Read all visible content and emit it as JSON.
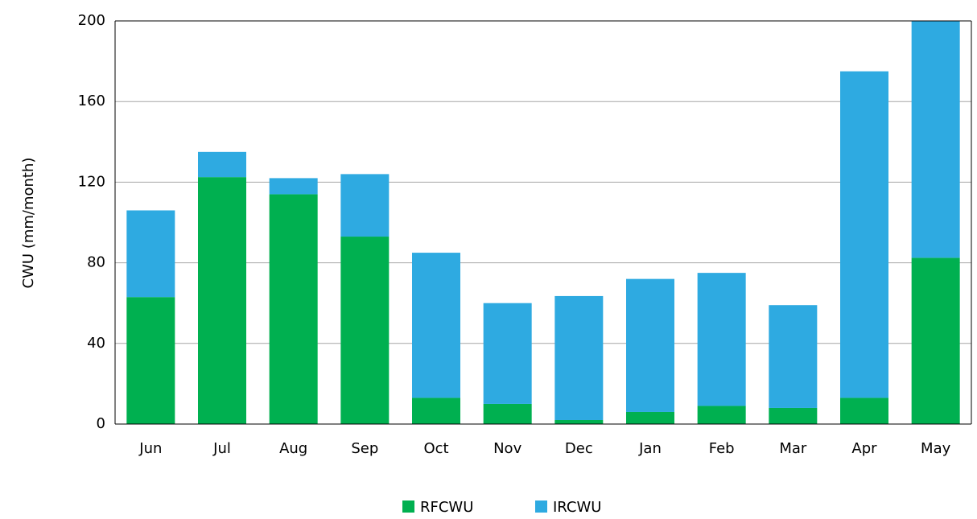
{
  "chart_data": {
    "type": "stacked_bar",
    "y_label": "CWU (mm/month)",
    "categories": [
      "Jun",
      "Jul",
      "Aug",
      "Sep",
      "Oct",
      "Nov",
      "Dec",
      "Jan",
      "Feb",
      "Mar",
      "Apr",
      "May"
    ],
    "series": [
      {
        "name": "RFCWU",
        "color": "#00b050",
        "values": [
          63,
          122.5,
          114,
          93,
          13,
          10,
          2,
          6,
          9,
          8,
          13,
          82.5
        ]
      },
      {
        "name": "IRCWU",
        "color": "#2eaae1",
        "values": [
          43,
          12.5,
          8,
          31,
          72,
          50,
          61.5,
          66,
          66,
          51,
          162,
          117.5
        ]
      }
    ],
    "ylim": [
      0,
      200
    ],
    "yticks": [
      0,
      40,
      80,
      120,
      160,
      200
    ],
    "grid": true,
    "legend": "bottom"
  }
}
